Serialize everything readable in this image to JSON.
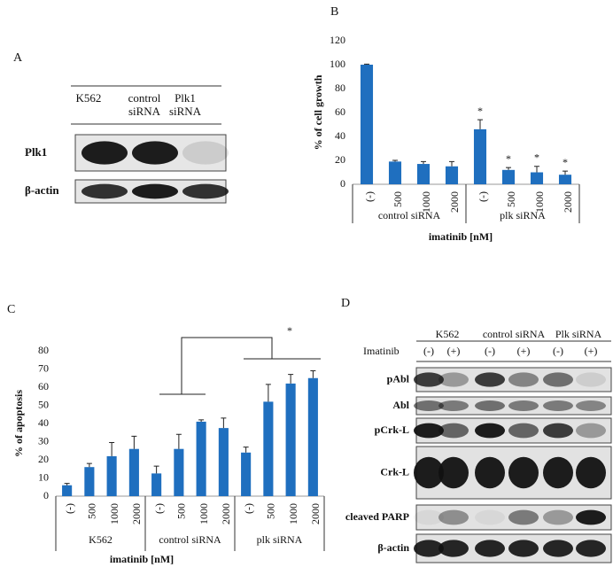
{
  "panel_labels": [
    "A",
    "B",
    "C",
    "D"
  ],
  "blot_a": {
    "columns": [
      "K562",
      "control siRNA",
      "Plk1 siRNA"
    ],
    "rows": [
      "Plk1",
      "β-actin"
    ]
  },
  "chart_data": [
    {
      "type": "bar",
      "ylabel": "% of cell growth",
      "xlabel": "imatinib [nM]",
      "categories": [
        "(-)",
        "500",
        "1000",
        "2000",
        "(-)",
        "500",
        "1000",
        "2000"
      ],
      "groups": [
        "control siRNA",
        "plk siRNA"
      ],
      "values": [
        100,
        19,
        17,
        15,
        46,
        12,
        10,
        8
      ],
      "errors": [
        0.5,
        1,
        2,
        4,
        8,
        2,
        5,
        3
      ],
      "markers": [
        null,
        null,
        null,
        null,
        "*",
        "*",
        "*",
        "*"
      ],
      "color": "#1f6fbf",
      "ylim": [
        0,
        120
      ],
      "yticks": [
        0,
        20,
        40,
        60,
        80,
        100,
        120
      ]
    },
    {
      "type": "bar",
      "ylabel": "% of apoptosis",
      "xlabel": "imatinib [nM]",
      "categories": [
        "(-)",
        "500",
        "1000",
        "2000",
        "(-)",
        "500",
        "1000",
        "2000",
        "(-)",
        "500",
        "1000",
        "2000"
      ],
      "groups": [
        "K562",
        "control siRNA",
        "plk siRNA"
      ],
      "values": [
        6,
        16,
        22,
        26,
        12.5,
        26,
        41,
        37.5,
        24,
        52,
        62,
        65
      ],
      "errors": [
        1,
        2,
        7.5,
        7,
        4,
        8,
        1,
        5.5,
        3,
        9.5,
        5,
        4
      ],
      "annotation": "*",
      "color": "#1f6fbf",
      "ylim": [
        0,
        80
      ],
      "yticks": [
        0,
        10,
        20,
        30,
        40,
        50,
        60,
        70,
        80
      ]
    }
  ],
  "blot_d": {
    "groups": [
      "K562",
      "control siRNA",
      "Plk siRNA"
    ],
    "treatment_label": "Imatinib",
    "treatments": [
      "(-)",
      "(+)",
      "(-)",
      "(+)",
      "(-)",
      "(+)"
    ],
    "rows": [
      "pAbl",
      "Abl",
      "pCrk-L",
      "Crk-L",
      "cleaved PARP",
      "β-actin"
    ]
  }
}
